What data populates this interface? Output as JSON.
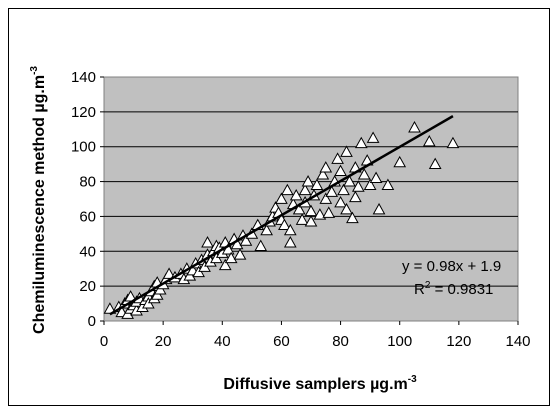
{
  "chart_data": {
    "type": "scatter",
    "title": "",
    "xlabel": "Diffusive samplers µg.m",
    "xlabel_sup": "-3",
    "ylabel": "Chemiluminescence method µg.m",
    "ylabel_sup": "-3",
    "xlim": [
      0,
      140
    ],
    "ylim": [
      0,
      140
    ],
    "xticks": [
      "0",
      "20",
      "40",
      "60",
      "80",
      "100",
      "120",
      "140"
    ],
    "yticks": [
      "0",
      "20",
      "40",
      "60",
      "80",
      "100",
      "120",
      "140"
    ],
    "grid": true,
    "marker": "triangle",
    "plot_background": "#c0c0c0",
    "equation": "y = 0.98x + 1.9",
    "r2_prefix": "R",
    "r2_sup": "2",
    "r2_value": " = 0.9831",
    "trendline": {
      "slope": 0.98,
      "intercept": 1.9,
      "x_start": 2,
      "x_end": 118
    },
    "points": [
      [
        2,
        7
      ],
      [
        5,
        8
      ],
      [
        6,
        5
      ],
      [
        7,
        10
      ],
      [
        8,
        4
      ],
      [
        8,
        12
      ],
      [
        9,
        7
      ],
      [
        9,
        14
      ],
      [
        10,
        9
      ],
      [
        11,
        6
      ],
      [
        11,
        11
      ],
      [
        12,
        13
      ],
      [
        13,
        8
      ],
      [
        14,
        12
      ],
      [
        15,
        14
      ],
      [
        15,
        10
      ],
      [
        16,
        17
      ],
      [
        17,
        13
      ],
      [
        17,
        20
      ],
      [
        18,
        15
      ],
      [
        18,
        22
      ],
      [
        19,
        18
      ],
      [
        20,
        21
      ],
      [
        21,
        24
      ],
      [
        22,
        27
      ],
      [
        24,
        25
      ],
      [
        26,
        27
      ],
      [
        27,
        24
      ],
      [
        28,
        30
      ],
      [
        29,
        26
      ],
      [
        30,
        29
      ],
      [
        31,
        33
      ],
      [
        32,
        28
      ],
      [
        33,
        35
      ],
      [
        34,
        31
      ],
      [
        35,
        38
      ],
      [
        35,
        45
      ],
      [
        36,
        34
      ],
      [
        37,
        40
      ],
      [
        38,
        43
      ],
      [
        38,
        36
      ],
      [
        39,
        42
      ],
      [
        40,
        39
      ],
      [
        41,
        32
      ],
      [
        41,
        45
      ],
      [
        42,
        41
      ],
      [
        43,
        36
      ],
      [
        44,
        47
      ],
      [
        45,
        44
      ],
      [
        46,
        38
      ],
      [
        47,
        49
      ],
      [
        48,
        46
      ],
      [
        50,
        50
      ],
      [
        52,
        55
      ],
      [
        53,
        43
      ],
      [
        55,
        52
      ],
      [
        56,
        57
      ],
      [
        57,
        60
      ],
      [
        58,
        65
      ],
      [
        59,
        62
      ],
      [
        60,
        58
      ],
      [
        60,
        70
      ],
      [
        61,
        55
      ],
      [
        62,
        75
      ],
      [
        63,
        52
      ],
      [
        63,
        45
      ],
      [
        64,
        67
      ],
      [
        65,
        72
      ],
      [
        66,
        64
      ],
      [
        67,
        58
      ],
      [
        68,
        75
      ],
      [
        68,
        68
      ],
      [
        69,
        80
      ],
      [
        70,
        63
      ],
      [
        70,
        57
      ],
      [
        71,
        72
      ],
      [
        72,
        78
      ],
      [
        73,
        61
      ],
      [
        74,
        84
      ],
      [
        75,
        70
      ],
      [
        75,
        88
      ],
      [
        76,
        62
      ],
      [
        77,
        74
      ],
      [
        78,
        80
      ],
      [
        79,
        93
      ],
      [
        80,
        68
      ],
      [
        80,
        86
      ],
      [
        81,
        75
      ],
      [
        82,
        64
      ],
      [
        82,
        97
      ],
      [
        83,
        80
      ],
      [
        84,
        59
      ],
      [
        85,
        88
      ],
      [
        85,
        71
      ],
      [
        86,
        77
      ],
      [
        87,
        102
      ],
      [
        88,
        84
      ],
      [
        89,
        92
      ],
      [
        90,
        78
      ],
      [
        91,
        105
      ],
      [
        92,
        82
      ],
      [
        93,
        64
      ],
      [
        96,
        78
      ],
      [
        100,
        91
      ],
      [
        105,
        111
      ],
      [
        110,
        103
      ],
      [
        112,
        90
      ],
      [
        118,
        102
      ]
    ]
  }
}
